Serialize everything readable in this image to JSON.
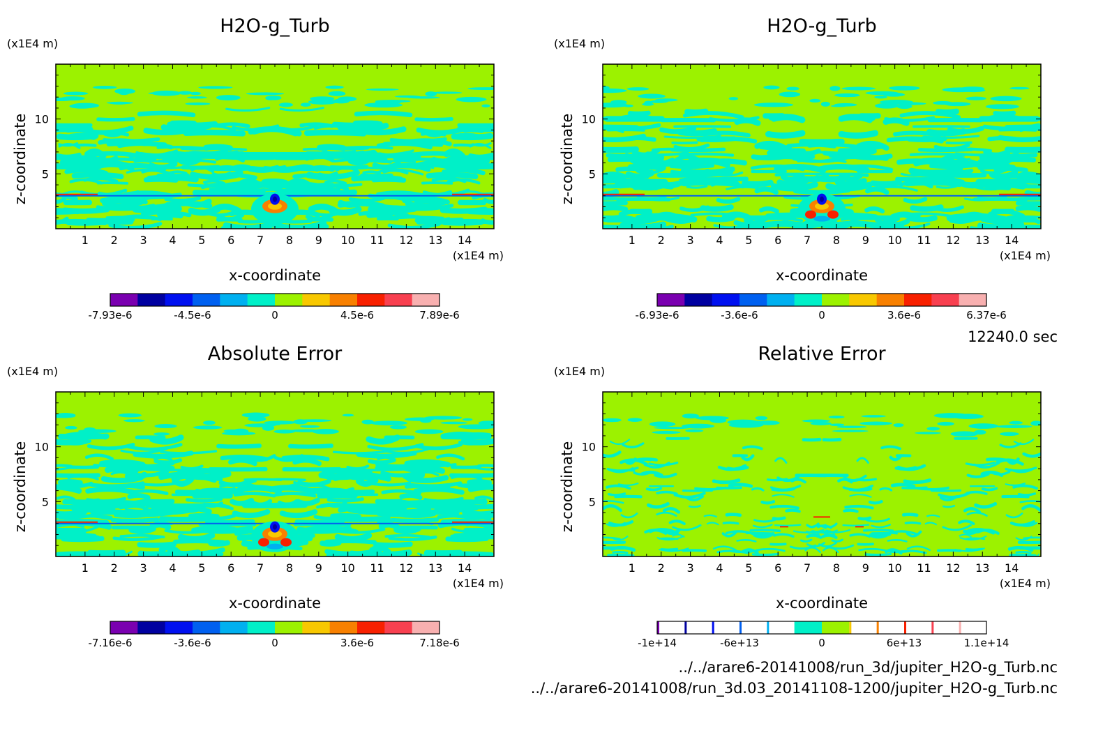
{
  "colors": {
    "background": "#9cf200",
    "cyan": "#00f0c8",
    "scale": [
      "#7a00b0",
      "#0000a0",
      "#0010f0",
      "#0060f0",
      "#00b0f0",
      "#00f0c8",
      "#9cf200",
      "#f8c800",
      "#f88000",
      "#f82000",
      "#f84050",
      "#f8b0b0"
    ]
  },
  "timestamp": "12240.0 sec",
  "file_paths": [
    "../../arare6-20141008/run_3d/jupiter_H2O-g_Turb.nc",
    "../../arare6-20141008/run_3d.03_20141108-1200/jupiter_H2O-g_Turb.nc"
  ],
  "panels": [
    {
      "title": "H2O-g_Turb",
      "y_unit": "(x1E4 m)",
      "x_unit": "(x1E4 m)",
      "ylabel": "z-coordinate",
      "xlabel": "x-coordinate",
      "colorbar_labels": [
        "-7.93e-6",
        "-4.5e-6",
        "0",
        "4.5e-6",
        "7.89e-6"
      ]
    },
    {
      "title": "H2O-g_Turb",
      "y_unit": "(x1E4 m)",
      "x_unit": "(x1E4 m)",
      "ylabel": "z-coordinate",
      "xlabel": "x-coordinate",
      "colorbar_labels": [
        "-6.93e-6",
        "-3.6e-6",
        "0",
        "3.6e-6",
        "6.37e-6"
      ]
    },
    {
      "title": "Absolute Error",
      "y_unit": "(x1E4 m)",
      "x_unit": "(x1E4 m)",
      "ylabel": "z-coordinate",
      "xlabel": "x-coordinate",
      "colorbar_labels": [
        "-7.16e-6",
        "-3.6e-6",
        "0",
        "3.6e-6",
        "7.18e-6"
      ]
    },
    {
      "title": "Relative Error",
      "y_unit": "(x1E4 m)",
      "x_unit": "(x1E4 m)",
      "ylabel": "z-coordinate",
      "xlabel": "x-coordinate",
      "colorbar_labels": [
        "-1e+14",
        "-6e+13",
        "0",
        "6e+13",
        "1.1e+14"
      ]
    }
  ],
  "chart_data": [
    {
      "type": "heatmap",
      "title": "H2O-g_Turb",
      "xlabel": "x-coordinate",
      "ylabel": "z-coordinate",
      "x_unit": "(x1E4 m)",
      "y_unit": "(x1E4 m)",
      "xlim": [
        0,
        15
      ],
      "ylim": [
        0,
        15
      ],
      "x_ticks": [
        1,
        2,
        3,
        4,
        5,
        6,
        7,
        8,
        9,
        10,
        11,
        12,
        13,
        14
      ],
      "y_ticks": [
        5,
        10
      ],
      "colorbar": {
        "labels": [
          "-7.93e-6",
          "-4.5e-6",
          "0",
          "4.5e-6",
          "7.89e-6"
        ],
        "min": -7.93e-06,
        "max": 7.89e-06
      }
    },
    {
      "type": "heatmap",
      "title": "H2O-g_Turb",
      "xlabel": "x-coordinate",
      "ylabel": "z-coordinate",
      "x_unit": "(x1E4 m)",
      "y_unit": "(x1E4 m)",
      "xlim": [
        0,
        15
      ],
      "ylim": [
        0,
        15
      ],
      "x_ticks": [
        1,
        2,
        3,
        4,
        5,
        6,
        7,
        8,
        9,
        10,
        11,
        12,
        13,
        14
      ],
      "y_ticks": [
        5,
        10
      ],
      "colorbar": {
        "labels": [
          "-6.93e-6",
          "-3.6e-6",
          "0",
          "3.6e-6",
          "6.37e-6"
        ],
        "min": -6.93e-06,
        "max": 6.37e-06
      }
    },
    {
      "type": "heatmap",
      "title": "Absolute Error",
      "xlabel": "x-coordinate",
      "ylabel": "z-coordinate",
      "x_unit": "(x1E4 m)",
      "y_unit": "(x1E4 m)",
      "xlim": [
        0,
        15
      ],
      "ylim": [
        0,
        15
      ],
      "x_ticks": [
        1,
        2,
        3,
        4,
        5,
        6,
        7,
        8,
        9,
        10,
        11,
        12,
        13,
        14
      ],
      "y_ticks": [
        5,
        10
      ],
      "colorbar": {
        "labels": [
          "-7.16e-6",
          "-3.6e-6",
          "0",
          "3.6e-6",
          "7.18e-6"
        ],
        "min": -7.16e-06,
        "max": 7.18e-06
      }
    },
    {
      "type": "heatmap",
      "title": "Relative Error",
      "xlabel": "x-coordinate",
      "ylabel": "z-coordinate",
      "x_unit": "(x1E4 m)",
      "y_unit": "(x1E4 m)",
      "xlim": [
        0,
        15
      ],
      "ylim": [
        0,
        15
      ],
      "x_ticks": [
        1,
        2,
        3,
        4,
        5,
        6,
        7,
        8,
        9,
        10,
        11,
        12,
        13,
        14
      ],
      "y_ticks": [
        5,
        10
      ],
      "colorbar": {
        "labels": [
          "-1e+14",
          "-6e+13",
          "0",
          "6e+13",
          "1.1e+14"
        ],
        "min": -100000000000000.0,
        "max": 110000000000000.0
      }
    }
  ]
}
